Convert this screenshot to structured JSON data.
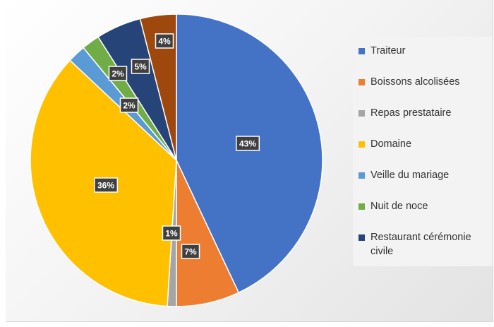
{
  "chart_data": {
    "type": "pie",
    "slices": [
      {
        "label": "Traiteur",
        "value": 43,
        "label_text": "43%",
        "color": "#4472C4"
      },
      {
        "label": "Boissons alcolisées",
        "value": 7,
        "label_text": "7%",
        "color": "#ED7D31"
      },
      {
        "label": "Repas prestataire",
        "value": 1,
        "label_text": "1%",
        "color": "#A5A5A5"
      },
      {
        "label": "Domaine",
        "value": 36,
        "label_text": "36%",
        "color": "#FFC000"
      },
      {
        "label": "Veille du mariage",
        "value": 2,
        "label_text": "2%",
        "color": "#5B9BD5"
      },
      {
        "label": "Nuit de noce",
        "value": 2,
        "label_text": "2%",
        "color": "#70AD47"
      },
      {
        "label": "Restaurant cérémonie civile",
        "value": 5,
        "label_text": "5%",
        "color": "#264478"
      },
      {
        "label": "",
        "value": 4,
        "label_text": "4%",
        "color": "#9E480E"
      }
    ],
    "legend_position": "right",
    "legend": [
      {
        "label": "Traiteur",
        "color": "#4472C4"
      },
      {
        "label": "Boissons alcolisées",
        "color": "#ED7D31"
      },
      {
        "label": "Repas prestataire",
        "color": "#A5A5A5"
      },
      {
        "label": "Domaine",
        "color": "#FFC000"
      },
      {
        "label": "Veille du mariage",
        "color": "#5B9BD5"
      },
      {
        "label": "Nuit de noce",
        "color": "#70AD47"
      },
      {
        "label": "Restaurant cérémonie civile",
        "color": "#264478"
      }
    ]
  }
}
